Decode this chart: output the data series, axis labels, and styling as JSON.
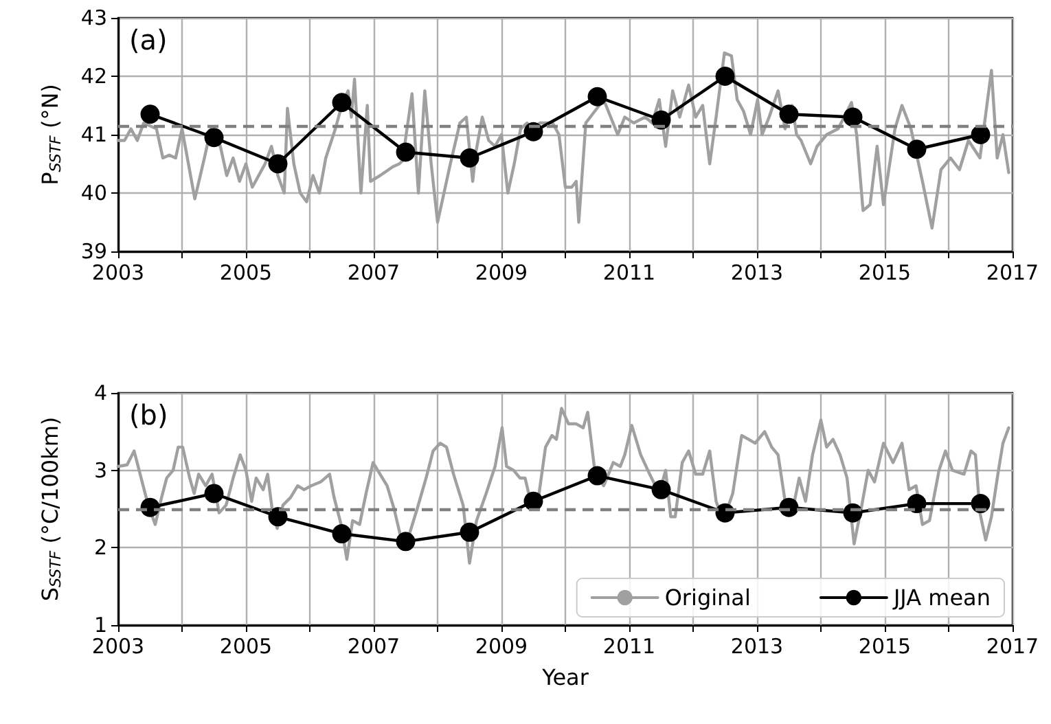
{
  "chart_data": [
    {
      "type": "line",
      "ylabel": "P$_{SSTF}$ (°N)",
      "annotations": [
        "(a)"
      ],
      "xlim": [
        2003,
        2017
      ],
      "ylim": [
        39,
        43
      ],
      "xticks": [
        2003,
        {
          "value": 2004,
          "label": null
        },
        2005,
        {
          "value": 2006,
          "label": null
        },
        2007,
        {
          "value": 2008,
          "label": null
        },
        2009,
        {
          "value": 2010,
          "label": null
        },
        2011,
        {
          "value": 2012,
          "label": null
        },
        2013,
        {
          "value": 2014,
          "label": null
        },
        2015,
        {
          "value": 2016,
          "label": null
        },
        2017
      ],
      "yticks": [
        39,
        40,
        41,
        42,
        43
      ],
      "grid": true,
      "legend": false,
      "ref_lines": [
        {
          "axis": "y",
          "value": 41.15,
          "color": "#808080",
          "line_style": "dashed"
        }
      ],
      "series": [
        {
          "color": "#a0a0a0",
          "marker": "none",
          "x": [
            2003.0,
            2003.1,
            2003.2,
            2003.3,
            2003.4,
            2003.6,
            2003.7,
            2003.8,
            2003.9,
            2004.0,
            2004.1,
            2004.2,
            2004.35,
            2004.45,
            2004.6,
            2004.7,
            2004.8,
            2004.9,
            2005.0,
            2005.1,
            2005.3,
            2005.4,
            2005.5,
            2005.6,
            2005.65,
            2005.75,
            2005.85,
            2005.95,
            2006.05,
            2006.15,
            2006.25,
            2006.4,
            2006.5,
            2006.6,
            2006.65,
            2006.7,
            2006.8,
            2006.9,
            2006.95,
            2007.1,
            2007.3,
            2007.4,
            2007.45,
            2007.6,
            2007.7,
            2007.8,
            2007.9,
            2008.0,
            2008.1,
            2008.2,
            2008.35,
            2008.45,
            2008.55,
            2008.6,
            2008.7,
            2008.8,
            2008.9,
            2009.0,
            2009.1,
            2009.2,
            2009.3,
            2009.4,
            2009.5,
            2009.6,
            2009.8,
            2009.9,
            2010.0,
            2010.1,
            2010.17,
            2010.21,
            2010.32,
            2010.46,
            2010.6,
            2010.71,
            2010.82,
            2010.93,
            2011.07,
            2011.25,
            2011.36,
            2011.47,
            2011.57,
            2011.68,
            2011.79,
            2011.93,
            2012.04,
            2012.15,
            2012.26,
            2012.36,
            2012.49,
            2012.6,
            2012.69,
            2012.79,
            2012.9,
            2013.01,
            2013.08,
            2013.19,
            2013.33,
            2013.44,
            2013.55,
            2013.62,
            2013.69,
            2013.84,
            2013.94,
            2014.09,
            2014.27,
            2014.48,
            2014.56,
            2014.66,
            2014.77,
            2014.88,
            2014.98,
            2015.16,
            2015.27,
            2015.41,
            2015.59,
            2015.74,
            2015.88,
            2016.03,
            2016.17,
            2016.31,
            2016.49,
            2016.67,
            2016.76,
            2016.85,
            2016.94
          ],
          "values": [
            40.9,
            40.9,
            41.1,
            40.9,
            41.2,
            41.1,
            40.6,
            40.65,
            40.6,
            41.1,
            40.5,
            39.9,
            40.6,
            41.1,
            40.8,
            40.3,
            40.6,
            40.2,
            40.5,
            40.1,
            40.5,
            40.8,
            40.3,
            40.0,
            41.45,
            40.5,
            40.0,
            39.85,
            40.3,
            40.0,
            40.6,
            41.1,
            41.5,
            41.75,
            41.3,
            41.95,
            40.0,
            41.5,
            40.2,
            40.3,
            40.45,
            40.5,
            40.55,
            41.7,
            40.0,
            41.75,
            40.5,
            39.5,
            40.0,
            40.5,
            41.2,
            41.3,
            40.2,
            40.7,
            41.3,
            40.9,
            40.8,
            41.0,
            40.0,
            40.5,
            41.1,
            41.2,
            41.1,
            41.2,
            41.2,
            41.0,
            40.1,
            40.1,
            40.2,
            39.5,
            41.2,
            41.4,
            41.6,
            41.3,
            41.0,
            41.3,
            41.2,
            41.3,
            41.2,
            41.6,
            40.8,
            41.75,
            41.3,
            41.85,
            41.3,
            41.5,
            40.5,
            41.3,
            42.4,
            42.35,
            41.6,
            41.4,
            41.0,
            41.6,
            41.0,
            41.3,
            41.75,
            41.1,
            41.5,
            41.0,
            40.9,
            40.5,
            40.8,
            41.0,
            41.1,
            41.55,
            41.0,
            39.7,
            39.8,
            40.8,
            39.8,
            41.1,
            41.5,
            41.1,
            40.2,
            39.4,
            40.4,
            40.6,
            40.4,
            40.9,
            40.6,
            42.1,
            40.6,
            41.0,
            40.35
          ]
        },
        {
          "color": "#000000",
          "marker": "circle",
          "x": [
            2003.5,
            2004.5,
            2005.5,
            2006.5,
            2007.5,
            2008.5,
            2009.5,
            2010.5,
            2011.5,
            2012.5,
            2013.5,
            2014.5,
            2015.5,
            2016.5
          ],
          "values": [
            41.35,
            40.95,
            40.5,
            41.55,
            40.7,
            40.6,
            41.05,
            41.65,
            41.25,
            42.0,
            41.35,
            41.3,
            40.75,
            41.0
          ]
        }
      ]
    },
    {
      "type": "line",
      "xlabel": "Year",
      "ylabel": "S$_{SSTF}$ (°C/100km)",
      "annotations": [
        "(b)"
      ],
      "xlim": [
        2003,
        2017
      ],
      "ylim": [
        1,
        4
      ],
      "xticks": [
        2003,
        {
          "value": 2004,
          "label": null
        },
        2005,
        {
          "value": 2006,
          "label": null
        },
        2007,
        {
          "value": 2008,
          "label": null
        },
        2009,
        {
          "value": 2010,
          "label": null
        },
        2011,
        {
          "value": 2012,
          "label": null
        },
        2013,
        {
          "value": 2014,
          "label": null
        },
        2015,
        {
          "value": 2016,
          "label": null
        },
        2017
      ],
      "yticks": [
        1,
        2,
        3,
        4
      ],
      "grid": true,
      "legend": "bottom right",
      "ref_lines": [
        {
          "axis": "y",
          "value": 2.5,
          "color": "#808080",
          "line_style": "dashed"
        }
      ],
      "series": [
        {
          "name": "Original",
          "color": "#a0a0a0",
          "marker": "none",
          "x": [
            2003.0,
            2003.14,
            2003.25,
            2003.36,
            2003.47,
            2003.58,
            2003.68,
            2003.76,
            2003.86,
            2003.94,
            2004.01,
            2004.12,
            2004.19,
            2004.26,
            2004.37,
            2004.47,
            2004.58,
            2004.69,
            2004.8,
            2004.91,
            2005.0,
            2005.09,
            2005.16,
            2005.27,
            2005.34,
            2005.41,
            2005.49,
            2005.58,
            2005.7,
            2005.81,
            2005.91,
            2006.02,
            2006.17,
            2006.31,
            2006.38,
            2006.49,
            2006.58,
            2006.67,
            2006.78,
            2006.88,
            2006.99,
            2007.1,
            2007.21,
            2007.32,
            2007.42,
            2007.53,
            2007.68,
            2007.82,
            2007.93,
            2008.04,
            2008.14,
            2008.25,
            2008.4,
            2008.5,
            2008.61,
            2008.76,
            2008.9,
            2009.01,
            2009.08,
            2009.19,
            2009.29,
            2009.37,
            2009.47,
            2009.58,
            2009.69,
            2009.79,
            2009.86,
            2009.94,
            2010.05,
            2010.17,
            2010.28,
            2010.35,
            2010.46,
            2010.6,
            2010.75,
            2010.86,
            2010.93,
            2011.04,
            2011.18,
            2011.32,
            2011.47,
            2011.57,
            2011.65,
            2011.72,
            2011.83,
            2011.93,
            2012.04,
            2012.15,
            2012.26,
            2012.36,
            2012.47,
            2012.62,
            2012.76,
            2012.87,
            2012.97,
            2013.12,
            2013.23,
            2013.33,
            2013.44,
            2013.55,
            2013.66,
            2013.76,
            2013.87,
            2014.0,
            2014.09,
            2014.19,
            2014.3,
            2014.41,
            2014.52,
            2014.63,
            2014.74,
            2014.84,
            2014.98,
            2015.13,
            2015.27,
            2015.38,
            2015.49,
            2015.59,
            2015.7,
            2015.85,
            2015.95,
            2016.06,
            2016.24,
            2016.35,
            2016.42,
            2016.49,
            2016.58,
            2016.67,
            2016.78,
            2016.85,
            2016.94
          ],
          "values": [
            3.05,
            3.07,
            3.25,
            2.9,
            2.55,
            2.3,
            2.65,
            2.9,
            3.0,
            3.3,
            3.3,
            2.9,
            2.7,
            2.95,
            2.8,
            2.95,
            2.45,
            2.55,
            2.9,
            3.2,
            3.0,
            2.6,
            2.9,
            2.75,
            2.95,
            2.5,
            2.25,
            2.55,
            2.65,
            2.8,
            2.75,
            2.8,
            2.85,
            2.95,
            2.65,
            2.3,
            1.85,
            2.35,
            2.3,
            2.7,
            3.1,
            2.95,
            2.8,
            2.5,
            2.15,
            2.1,
            2.5,
            2.9,
            3.25,
            3.35,
            3.3,
            2.95,
            2.55,
            1.8,
            2.35,
            2.7,
            3.05,
            3.55,
            3.05,
            3.0,
            2.9,
            2.9,
            2.55,
            2.65,
            3.3,
            3.45,
            3.4,
            3.8,
            3.6,
            3.6,
            3.55,
            3.75,
            3.0,
            2.8,
            3.1,
            3.05,
            3.2,
            3.58,
            3.2,
            2.95,
            2.7,
            3.0,
            2.4,
            2.4,
            3.1,
            3.25,
            2.95,
            2.95,
            3.25,
            2.6,
            2.35,
            2.7,
            3.45,
            3.4,
            3.35,
            3.5,
            3.3,
            3.2,
            2.6,
            2.45,
            2.9,
            2.6,
            3.2,
            3.65,
            3.3,
            3.4,
            3.2,
            2.9,
            2.05,
            2.5,
            3.0,
            2.85,
            3.35,
            3.1,
            3.35,
            2.75,
            2.8,
            2.3,
            2.35,
            3.0,
            3.25,
            3.0,
            2.95,
            3.25,
            3.2,
            2.45,
            2.1,
            2.4,
            3.0,
            3.35,
            3.55
          ]
        },
        {
          "name": "JJA mean",
          "color": "#000000",
          "marker": "circle",
          "x": [
            2003.5,
            2004.5,
            2005.5,
            2006.5,
            2007.5,
            2008.5,
            2009.5,
            2010.5,
            2011.5,
            2012.5,
            2013.5,
            2014.5,
            2015.5,
            2016.5
          ],
          "values": [
            2.52,
            2.7,
            2.4,
            2.18,
            2.08,
            2.2,
            2.6,
            2.93,
            2.75,
            2.45,
            2.52,
            2.45,
            2.57,
            2.57
          ]
        }
      ]
    }
  ]
}
